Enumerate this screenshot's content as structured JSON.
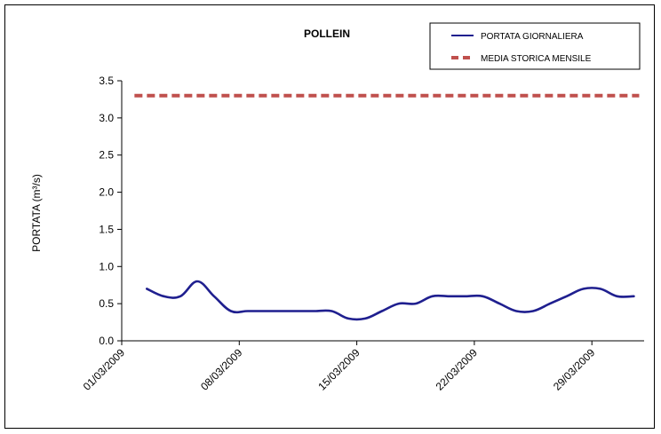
{
  "chart_data": {
    "type": "line",
    "title": "POLLEIN",
    "ylabel": "PORTATA (m³/s)",
    "xlabel": "",
    "ylim": [
      0,
      3.5
    ],
    "y_ticks": [
      "0.0",
      "0.5",
      "1.0",
      "1.5",
      "2.0",
      "2.5",
      "3.0",
      "3.5"
    ],
    "x_tick_labels": [
      "01/03/2009",
      "08/03/2009",
      "15/03/2009",
      "22/03/2009",
      "29/03/2009"
    ],
    "x_start_date": "2009-03-01",
    "legend_position": "top-right",
    "grid": false,
    "series": [
      {
        "name": "PORTATA GIORNALIERA",
        "style": "solid",
        "color": "#1f1f8f",
        "x": [
          "2009-03-02",
          "2009-03-03",
          "2009-03-04",
          "2009-03-05",
          "2009-03-06",
          "2009-03-07",
          "2009-03-08",
          "2009-03-09",
          "2009-03-10",
          "2009-03-11",
          "2009-03-12",
          "2009-03-13",
          "2009-03-14",
          "2009-03-15",
          "2009-03-16",
          "2009-03-17",
          "2009-03-18",
          "2009-03-19",
          "2009-03-20",
          "2009-03-21",
          "2009-03-22",
          "2009-03-23",
          "2009-03-24",
          "2009-03-25",
          "2009-03-26",
          "2009-03-27",
          "2009-03-28",
          "2009-03-29",
          "2009-03-30",
          "2009-03-31"
        ],
        "values": [
          0.7,
          0.6,
          0.6,
          0.8,
          0.6,
          0.4,
          0.4,
          0.4,
          0.4,
          0.4,
          0.4,
          0.4,
          0.3,
          0.3,
          0.4,
          0.5,
          0.5,
          0.6,
          0.6,
          0.6,
          0.6,
          0.5,
          0.4,
          0.4,
          0.5,
          0.6,
          0.7,
          0.7,
          0.6,
          0.6
        ]
      },
      {
        "name": "MEDIA STORICA MENSILE",
        "style": "dashed",
        "color": "#c0504d",
        "x": [
          "2009-03-02",
          "2009-03-31"
        ],
        "values": [
          3.3,
          3.3
        ]
      }
    ]
  }
}
